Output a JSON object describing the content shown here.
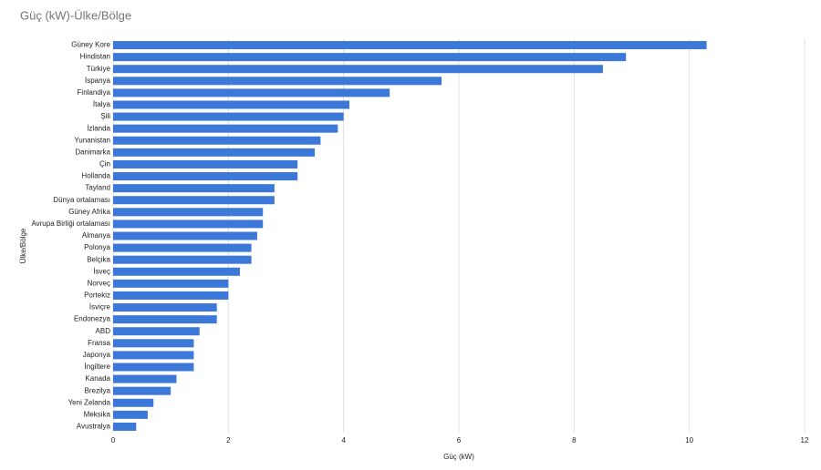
{
  "chart_data": {
    "type": "bar",
    "orientation": "horizontal",
    "title": "Güç (kW)-Ülke/Bölge",
    "x_label": "Güç (kW)",
    "y_label": "Ülke/Bölge",
    "categories": [
      "Güney Kore",
      "Hindistan",
      "Türkiye",
      "İspanya",
      "Finlandiya",
      "İtalya",
      "Şili",
      "İzlanda",
      "Yunanistan",
      "Danimarka",
      "Çin",
      "Hollanda",
      "Tayland",
      "Dünya ortalaması",
      "Güney Afrika",
      "Avrupa Birliği ortalaması",
      "Almanya",
      "Polonya",
      "Belçika",
      "İsveç",
      "Norveç",
      "Portekiz",
      "İsviçre",
      "Endonezya",
      "ABD",
      "Fransa",
      "Japonya",
      "İngiltere",
      "Kanada",
      "Brezilya",
      "Yeni Zelanda",
      "Meksika",
      "Avustralya"
    ],
    "values": [
      10.3,
      8.9,
      8.5,
      5.7,
      4.8,
      4.1,
      4.0,
      3.9,
      3.6,
      3.5,
      3.2,
      3.2,
      2.8,
      2.8,
      2.6,
      2.6,
      2.5,
      2.4,
      2.4,
      2.2,
      2.0,
      2.0,
      1.8,
      1.8,
      1.5,
      1.4,
      1.4,
      1.4,
      1.1,
      1.0,
      0.7,
      0.6,
      0.4
    ],
    "color": "#3c78d8",
    "xlim": [
      0,
      12
    ],
    "xticks": [
      0,
      2,
      4,
      6,
      8,
      10,
      12
    ],
    "grid": true
  }
}
